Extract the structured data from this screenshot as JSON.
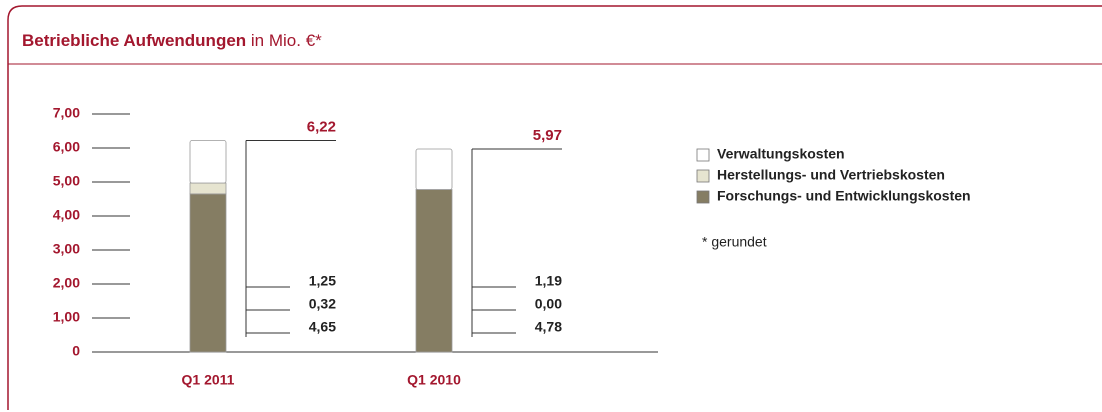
{
  "chart_data": {
    "type": "stacked_bar",
    "title": "Betriebliche Aufwendungen",
    "subtitle": "in Mio. €*",
    "footnote": "* gerundet",
    "categories": [
      "Q1 2011",
      "Q1 2010"
    ],
    "series": [
      {
        "name": "Forschungs- und Entwicklungskosten",
        "color": "#857d63",
        "values": [
          4.65,
          4.78
        ],
        "value_labels": [
          "4,65",
          "4,78"
        ]
      },
      {
        "name": "Herstellungs- und Vertriebskosten",
        "color": "#e6e4d0",
        "values": [
          0.32,
          0.0
        ],
        "value_labels": [
          "0,32",
          "0,00"
        ]
      },
      {
        "name": "Verwaltungskosten",
        "color": "#ffffff",
        "values": [
          1.25,
          1.19
        ],
        "value_labels": [
          "1,25",
          "1,19"
        ]
      }
    ],
    "totals": {
      "values": [
        6.22,
        5.97
      ],
      "value_labels": [
        "6,22",
        "5,97"
      ]
    },
    "ylim": [
      0,
      7
    ],
    "yticks": [
      0,
      {
        "value": 1,
        "label": "1,00"
      },
      {
        "value": 2,
        "label": "2,00"
      },
      {
        "value": 3,
        "label": "3,00"
      },
      {
        "value": 4,
        "label": "4,00"
      },
      {
        "value": 5,
        "label": "5,00"
      },
      {
        "value": 6,
        "label": "6,00"
      },
      {
        "value": 7,
        "label": "7,00"
      }
    ]
  }
}
